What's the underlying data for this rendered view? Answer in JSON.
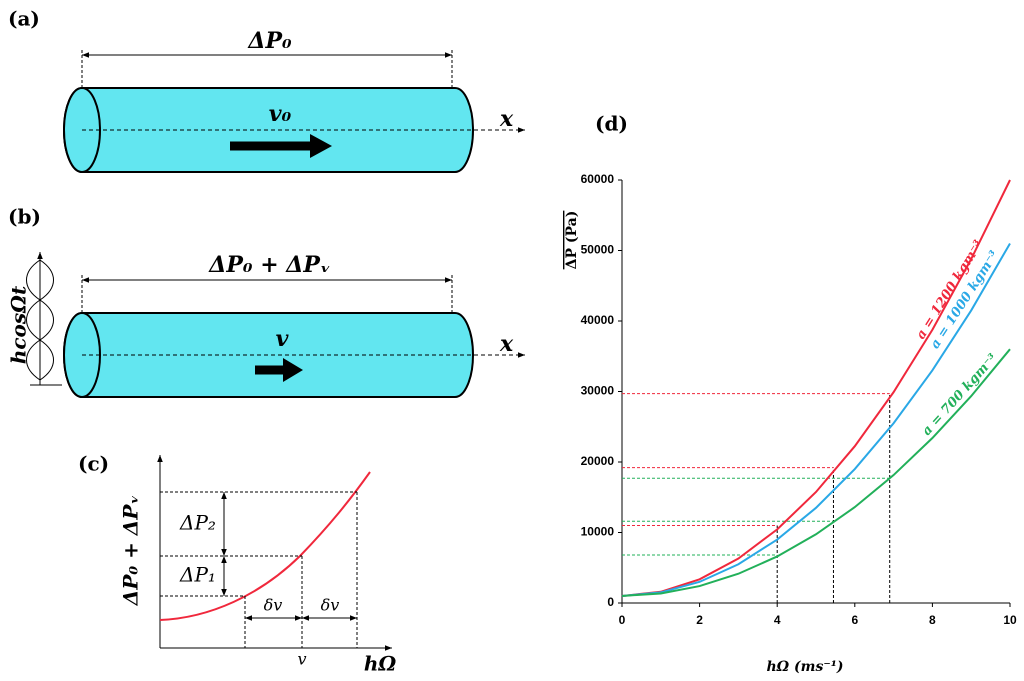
{
  "panels": {
    "a": {
      "tag": "(a)",
      "pressure": "ΔP₀",
      "velocity": "v₀",
      "axis": "x"
    },
    "b": {
      "tag": "(b)",
      "pressure": "ΔP₀ + ΔPᵥ",
      "velocity": "v",
      "axis": "x",
      "oscillation": "hcosΩt"
    },
    "c": {
      "tag": "(c)",
      "ylabel": "ΔP₀ + ΔPᵥ",
      "xlabel": "hΩ",
      "dp2": "ΔP₂",
      "dp1": "ΔP₁",
      "dv1": "δv",
      "dv2": "δv",
      "v": "v"
    },
    "d": {
      "tag": "(d)"
    }
  },
  "chart_data": {
    "type": "line",
    "xlabel": "hΩ (ms⁻¹)",
    "ylabel": "ΔP (Pa)",
    "x": [
      0,
      1,
      2,
      3,
      4,
      5,
      6,
      7,
      8,
      9,
      10
    ],
    "series": [
      {
        "name": "a = 1200 kgm⁻³",
        "color": "#f0283c",
        "values": [
          1000,
          1590,
          3360,
          6310,
          10440,
          15750,
          22240,
          29910,
          38760,
          48790,
          60000
        ],
        "guides_y": [
          11000,
          19200,
          29700
        ]
      },
      {
        "name": "a = 1000 kgm⁻³",
        "color": "#2aa8e6",
        "values": [
          1000,
          1500,
          3000,
          5500,
          9000,
          13500,
          19000,
          25500,
          33000,
          41500,
          51000
        ]
      },
      {
        "name": "a = 700 kgm⁻³",
        "color": "#22b05a",
        "values": [
          1000,
          1350,
          2400,
          4150,
          6600,
          9750,
          13600,
          18150,
          23400,
          29350,
          36000
        ],
        "guides_y": [
          6800,
          11600,
          17700
        ]
      }
    ],
    "guides_x": [
      4,
      5.45,
      6.9
    ],
    "xlim": [
      0,
      10
    ],
    "xticks": [
      0,
      2,
      4,
      6,
      8,
      10
    ],
    "ylim": [
      0,
      60000
    ],
    "yticks": [
      0,
      10000,
      20000,
      30000,
      40000,
      50000,
      60000
    ]
  }
}
